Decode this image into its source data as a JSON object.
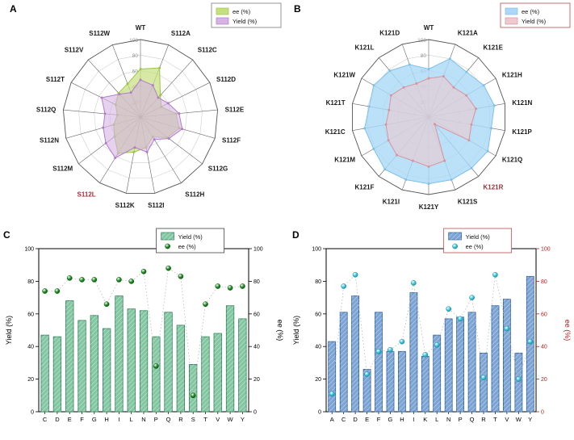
{
  "panels": [
    {
      "label": "A"
    },
    {
      "label": "B"
    },
    {
      "label": "C"
    },
    {
      "label": "D"
    }
  ],
  "chart_data": [
    {
      "panel": "A",
      "type": "radar",
      "rmax": 100,
      "ticks": [
        20,
        40,
        60,
        80,
        100
      ],
      "categories": [
        "WT",
        "S112A",
        "S112C",
        "S112D",
        "S112E",
        "S112F",
        "S112G",
        "S112H",
        "S112I",
        "S112K",
        "S112L",
        "S112M",
        "S112N",
        "S112Q",
        "S112T",
        "S112V",
        "S112W"
      ],
      "highlight": "S112L",
      "highlight_color": "#9e2f3a",
      "legend_border": "#8a8a8a",
      "series": [
        {
          "name": "ee (%)",
          "color": "#9dc544",
          "fill": "#c6e07e",
          "opacity": 0.7,
          "values": [
            62,
            68,
            38,
            30,
            46,
            52,
            44,
            30,
            40,
            46,
            55,
            42,
            36,
            30,
            36,
            42,
            46
          ]
        },
        {
          "name": "Yield (%)",
          "color": "#b07cc6",
          "fill": "#d6b3e4",
          "opacity": 0.6,
          "values": [
            48,
            44,
            34,
            40,
            50,
            56,
            46,
            34,
            46,
            40,
            62,
            56,
            50,
            46,
            56,
            40,
            34
          ]
        }
      ]
    },
    {
      "panel": "B",
      "type": "radar",
      "rmax": 100,
      "ticks": [
        20,
        40,
        60,
        80,
        100
      ],
      "categories": [
        "WT",
        "K121A",
        "K121E",
        "K121H",
        "K121N",
        "K121P",
        "K121Q",
        "K121R",
        "K121S",
        "K121Y",
        "K121I",
        "K121F",
        "K121M",
        "K121C",
        "K121T",
        "K121W",
        "K121L",
        "K121D"
      ],
      "highlight": "K121R",
      "highlight_color": "#9e2f3a",
      "legend_border": "#c06060",
      "series": [
        {
          "name": "ee (%)",
          "color": "#7fc0ea",
          "fill": "#a9d9f6",
          "opacity": 0.8,
          "values": [
            62,
            80,
            76,
            82,
            86,
            82,
            88,
            86,
            86,
            86,
            86,
            88,
            82,
            84,
            78,
            82,
            78,
            72
          ]
        },
        {
          "name": "Yield (%)",
          "color": "#d9939e",
          "fill": "#eccacf",
          "opacity": 0.6,
          "values": [
            50,
            56,
            50,
            56,
            62,
            56,
            60,
            12,
            60,
            64,
            60,
            64,
            60,
            56,
            52,
            56,
            50,
            46
          ]
        }
      ]
    },
    {
      "panel": "C",
      "type": "bar",
      "ylim": [
        0,
        100
      ],
      "yticks": [
        0,
        20,
        40,
        60,
        80,
        100
      ],
      "ylabel_left": "Yield (%)",
      "ylabel_right": "ee (%)",
      "right_color": "#000000",
      "legend_border": "#555555",
      "categories": [
        "C",
        "D",
        "E",
        "F",
        "G",
        "H",
        "I",
        "L",
        "N",
        "P",
        "Q",
        "R",
        "S",
        "T",
        "V",
        "W",
        "Y"
      ],
      "bar_series": {
        "name": "Yield (%)",
        "color": "#82c7a1",
        "border": "#2e7d58",
        "values": [
          47,
          46,
          68,
          56,
          59,
          51,
          71,
          63,
          62,
          46,
          61,
          53,
          29,
          46,
          48,
          65,
          57
        ]
      },
      "dot_series": {
        "name": "ee (%)",
        "color": "#18831c",
        "border": "#0b5a10",
        "values": [
          74,
          74,
          82,
          81,
          81,
          66,
          81,
          80,
          86,
          28,
          88,
          83,
          10,
          66,
          77,
          76,
          77
        ]
      }
    },
    {
      "panel": "D",
      "type": "bar",
      "ylim": [
        0,
        100
      ],
      "yticks": [
        0,
        20,
        40,
        60,
        80,
        100
      ],
      "ylabel_left": "Yield (%)",
      "ylabel_right": "ee (%)",
      "right_color": "#b22222",
      "legend_border": "#c06060",
      "categories": [
        "A",
        "C",
        "D",
        "E",
        "F",
        "G",
        "H",
        "I",
        "K",
        "L",
        "N",
        "P",
        "Q",
        "R",
        "T",
        "V",
        "W",
        "Y"
      ],
      "bar_series": {
        "name": "Yield (%)",
        "color": "#7ba3d4",
        "border": "#2f5f9e",
        "values": [
          43,
          61,
          71,
          26,
          61,
          37,
          37,
          73,
          34,
          47,
          57,
          58,
          61,
          36,
          65,
          69,
          36,
          83
        ]
      },
      "dot_series": {
        "name": "ee (%)",
        "color": "#35c4d8",
        "border": "#1787a0",
        "values": [
          11,
          77,
          84,
          23,
          37,
          38,
          43,
          79,
          35,
          41,
          63,
          57,
          70,
          21,
          84,
          51,
          20,
          43
        ]
      }
    }
  ]
}
